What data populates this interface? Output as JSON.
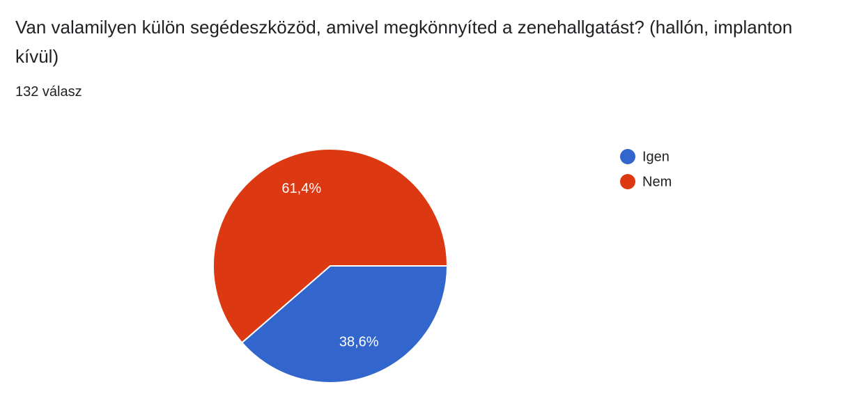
{
  "chart_data": {
    "type": "pie",
    "title": "Van valamilyen külön segédeszközöd, amivel megkönnyíted a zenehallgatást? (hallón, implanton kívül)",
    "subtitle": "132 válasz",
    "categories": [
      "Igen",
      "Nem"
    ],
    "values": [
      38.6,
      61.4
    ],
    "value_labels": [
      "38,6%",
      "61,4%"
    ],
    "colors": [
      "#3366cc",
      "#dc3912"
    ]
  }
}
